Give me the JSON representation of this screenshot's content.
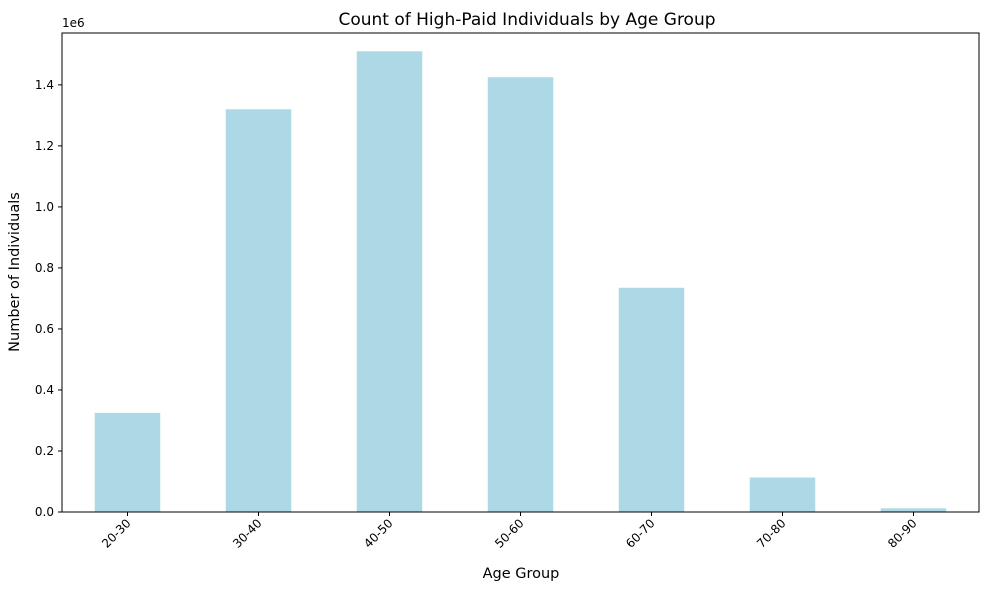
{
  "chart_data": {
    "type": "bar",
    "title": "Count of High-Paid Individuals by Age Group",
    "xlabel": "Age Group",
    "ylabel": "Number of Individuals",
    "offset_label": "1e6",
    "categories": [
      "20-30",
      "30-40",
      "40-50",
      "50-60",
      "60-70",
      "70-80",
      "80-90"
    ],
    "values": [
      325000,
      1320000,
      1510000,
      1425000,
      735000,
      113000,
      12000
    ],
    "ylim": [
      0,
      1570000
    ],
    "yticks": [
      0,
      200000,
      400000,
      600000,
      800000,
      1000000,
      1200000,
      1400000
    ],
    "ytick_labels": [
      "0.0",
      "0.2",
      "0.4",
      "0.6",
      "0.8",
      "1.0",
      "1.2",
      "1.4"
    ],
    "grid": false,
    "legend": "none",
    "bar_color": "#add8e6"
  }
}
